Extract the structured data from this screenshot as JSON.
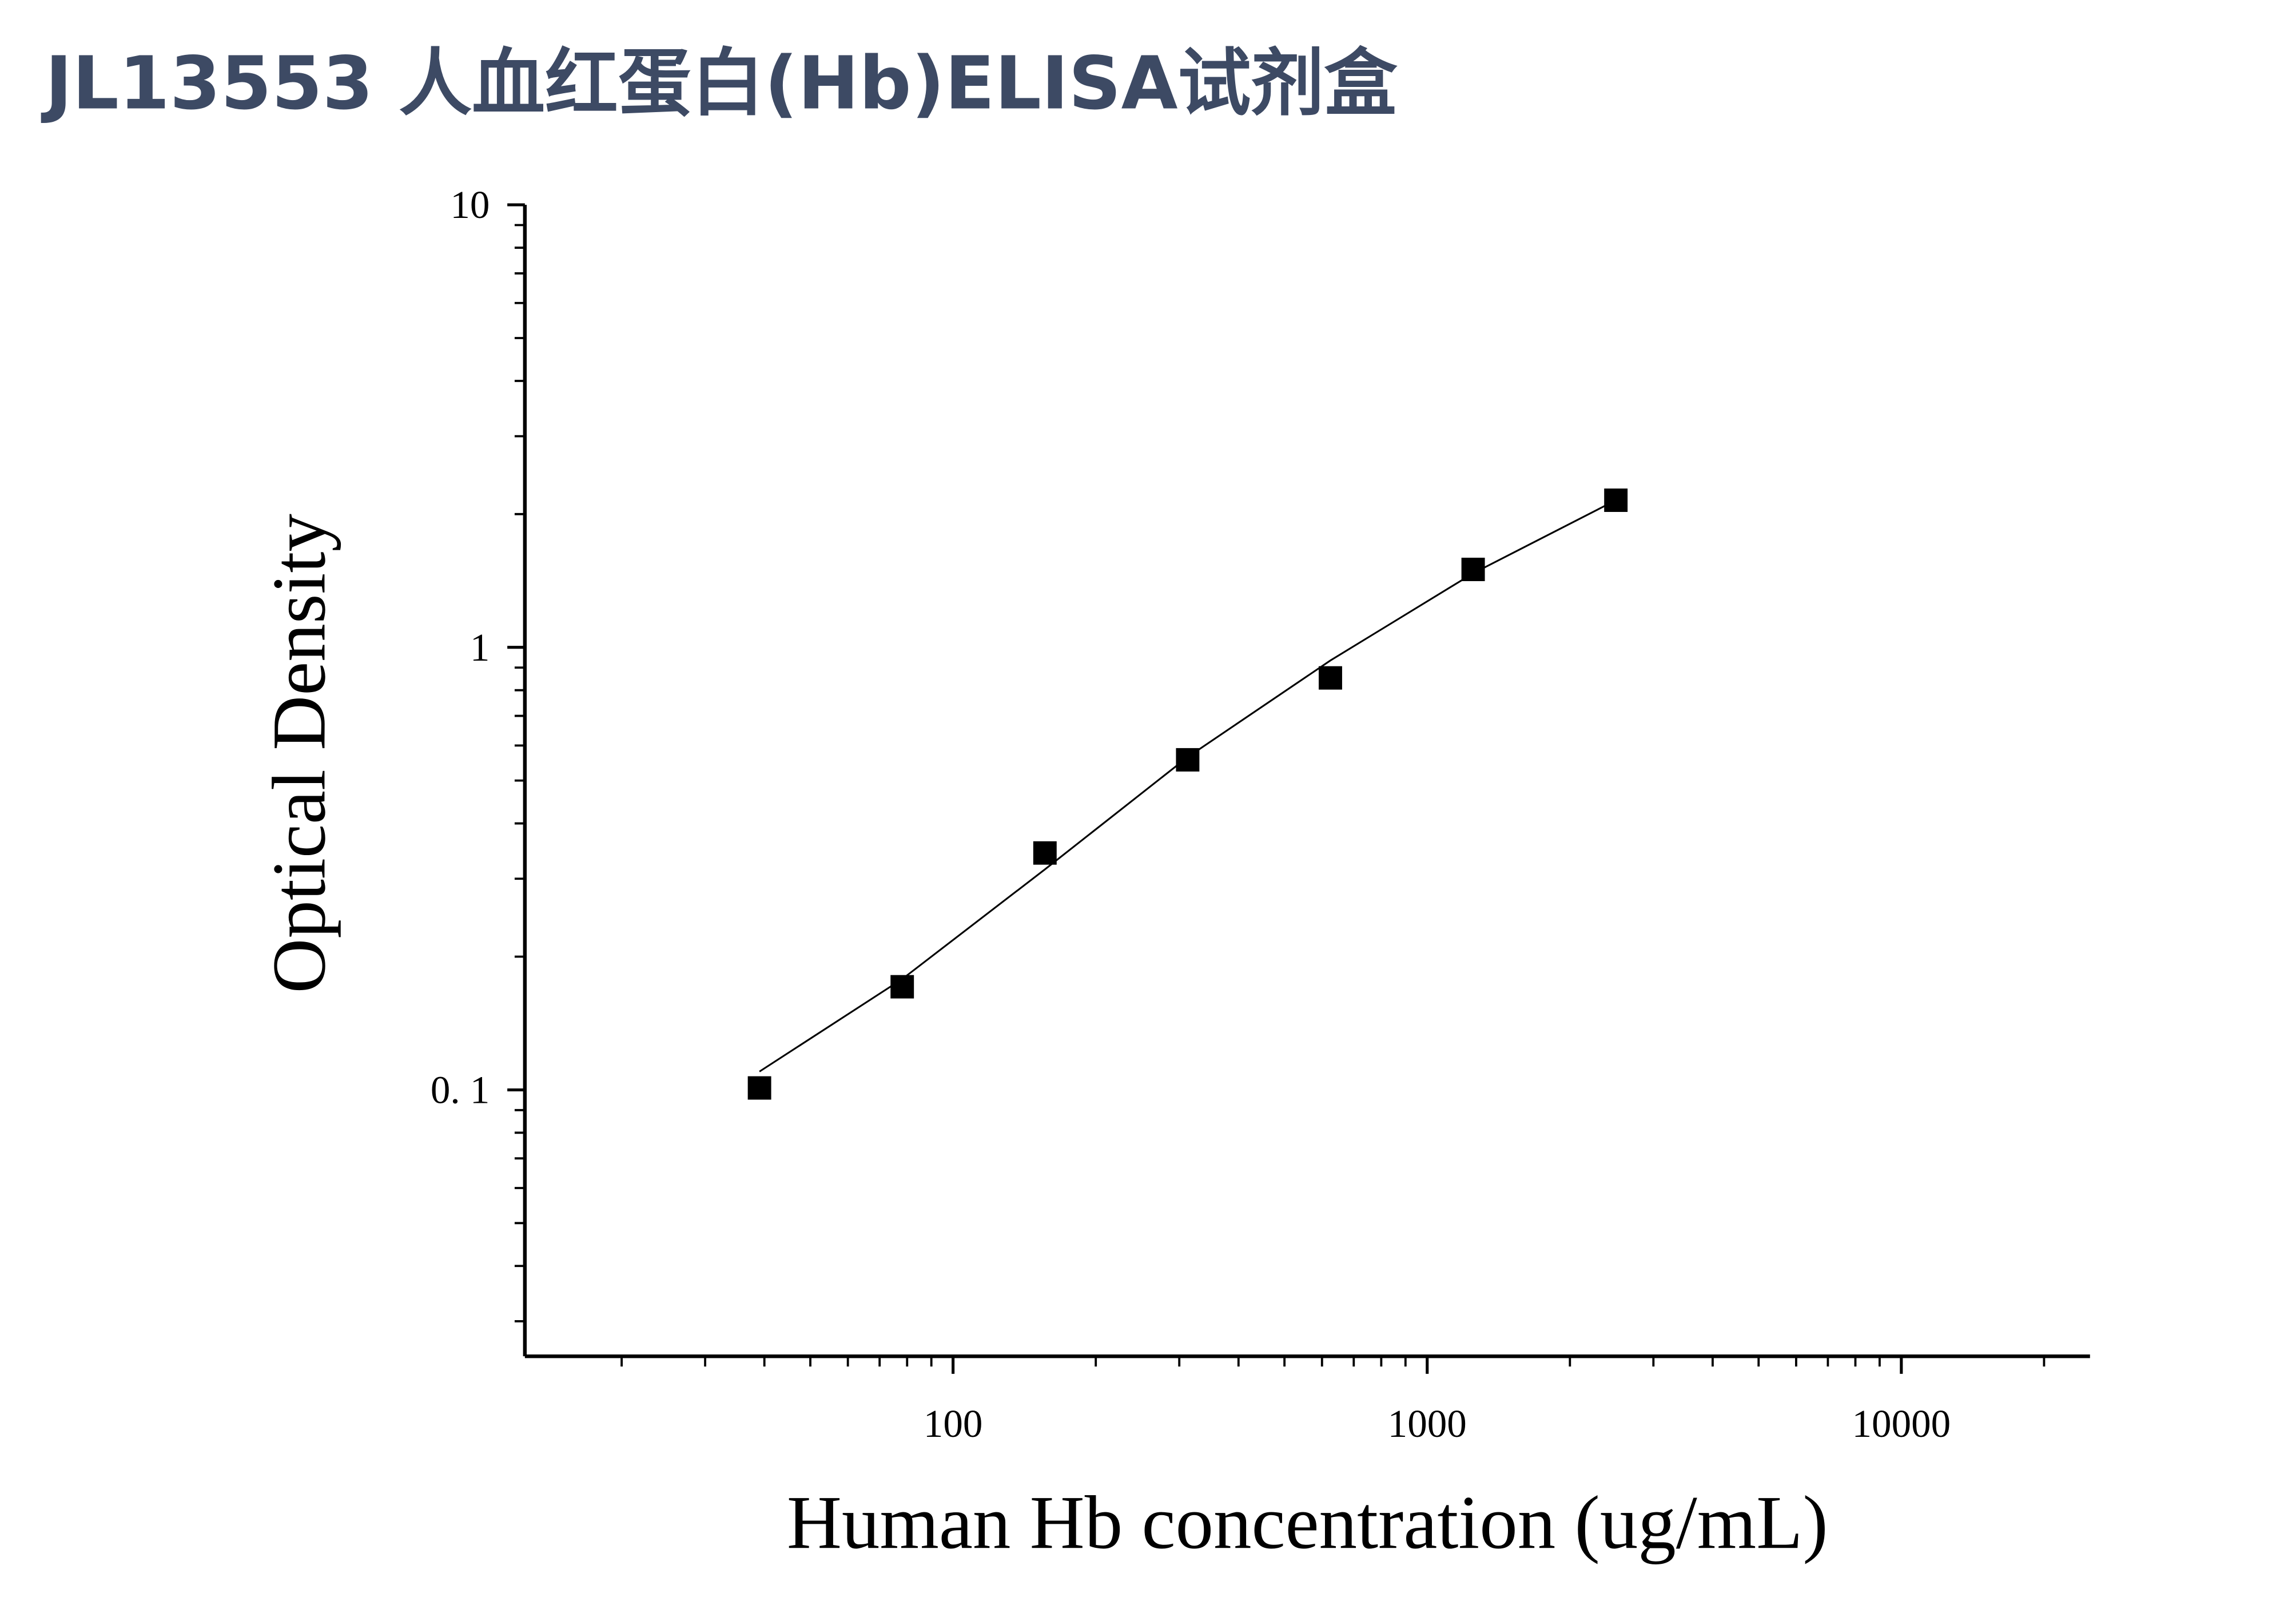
{
  "chart_data": {
    "type": "scatter",
    "title": "JL13553 人血红蛋白(Hb)ELISA试剂盒",
    "x_label": "Human Hb concentration (ug/mL)",
    "y_label": "Optical Density",
    "log_x": true,
    "log_y": true,
    "xlim": [
      12.5,
      25000
    ],
    "ylim": [
      0.025,
      10
    ],
    "xticks": [
      100,
      1000,
      10000
    ],
    "yticks": [
      {
        "value": 0.1,
        "label": "0. 1"
      },
      1,
      10
    ],
    "xminor_ticks": [
      20,
      30,
      40,
      50,
      60,
      70,
      80,
      90,
      200,
      300,
      400,
      500,
      600,
      700,
      800,
      900,
      2000,
      3000,
      4000,
      5000,
      6000,
      7000,
      8000,
      9000,
      20000
    ],
    "yminor_ticks": [
      0.03,
      0.04,
      0.05,
      0.06,
      0.07,
      0.08,
      0.09,
      0.2,
      0.3,
      0.4,
      0.5,
      0.6,
      0.7,
      0.8,
      0.9,
      2,
      3,
      4,
      5,
      6,
      7,
      8,
      9
    ],
    "series": [
      {
        "color": "#000000",
        "marker": "square",
        "x": [
          39.06,
          78.125,
          156.25,
          312.5,
          625,
          1250,
          2500
        ],
        "values": [
          0.101,
          0.171,
          0.343,
          0.557,
          0.853,
          1.5,
          2.15
        ]
      },
      {
        "color": "#000000",
        "marker": "line",
        "x": [
          39.06,
          78.125,
          156.25,
          312.5,
          625,
          1250,
          2500
        ],
        "values": [
          0.11,
          0.178,
          0.315,
          0.565,
          0.934,
          1.47,
          2.15
        ]
      }
    ]
  }
}
